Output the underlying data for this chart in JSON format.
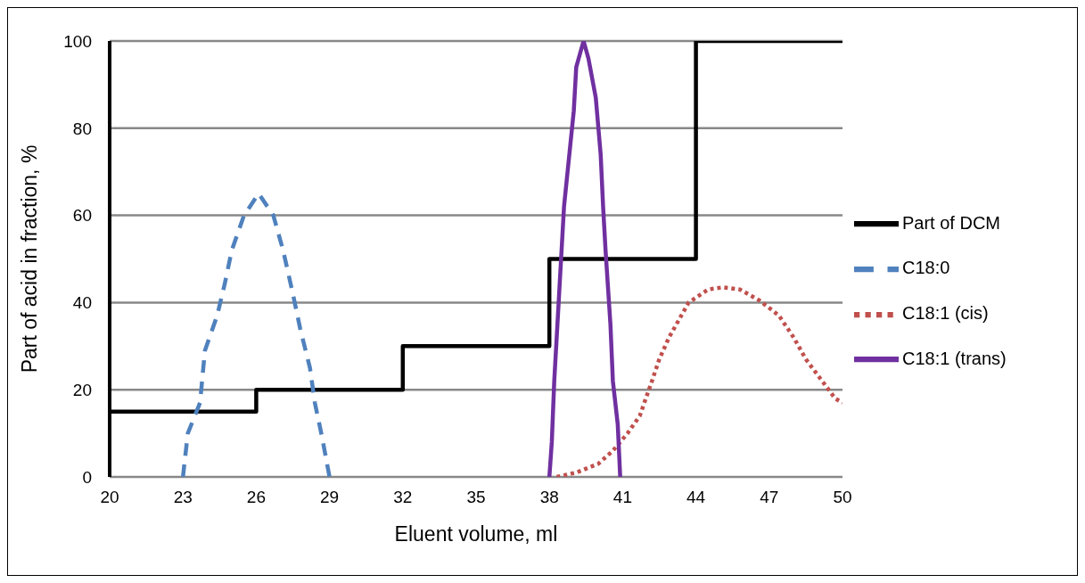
{
  "chart_data": {
    "type": "line",
    "xlabel": "Eluent volume, ml",
    "ylabel": "Part of acid in fraction, %",
    "xlim": [
      20,
      50
    ],
    "xticks": [
      20,
      23,
      26,
      29,
      32,
      35,
      38,
      41,
      44,
      47,
      50
    ],
    "ylim": [
      0,
      100
    ],
    "yticks": [
      0,
      20,
      40,
      60,
      80,
      100
    ],
    "grid": "y",
    "legend": "right",
    "marker": "none",
    "series": [
      {
        "name": "Part of DCM",
        "type": "step",
        "color": "#000000",
        "line_style": "solid",
        "x": [
          20,
          26,
          32,
          38,
          44,
          50
        ],
        "values": [
          15,
          20,
          30,
          50,
          100,
          100
        ]
      },
      {
        "name": "C18:0",
        "color": "#4f81bd",
        "line_style": "dashed",
        "x": [
          23.0,
          23.2,
          23.7,
          23.9,
          24.4,
          24.7,
          25.0,
          25.5,
          26.1,
          26.7,
          27.1,
          27.5,
          27.8,
          28.2,
          28.4,
          28.7,
          29.0
        ],
        "values": [
          0,
          10,
          17,
          29,
          37,
          44,
          52,
          60,
          65,
          60,
          52,
          42,
          34,
          25,
          17,
          9,
          0
        ]
      },
      {
        "name": "C18:1 (cis)",
        "color": "#c0504d",
        "line_style": "dotted",
        "x": [
          38.3,
          39.1,
          40.0,
          40.6,
          41.2,
          41.7,
          42.2,
          42.5,
          42.9,
          43.3,
          43.7,
          44.5,
          45.1,
          45.8,
          46.6,
          47.4,
          48.0,
          48.5,
          49.1,
          49.7,
          50.0
        ],
        "values": [
          0,
          1,
          3,
          6,
          10,
          14,
          22,
          27,
          32,
          36,
          40,
          43,
          43.5,
          43,
          40.5,
          37,
          32,
          27,
          22.5,
          18,
          17
        ]
      },
      {
        "name": "C18:1 (trans)",
        "color": "#7030a0",
        "line_style": "solid",
        "x": [
          38.0,
          38.1,
          38.2,
          38.4,
          38.6,
          38.8,
          39.0,
          39.1,
          39.4,
          39.6,
          39.9,
          40.1,
          40.2,
          40.3,
          40.5,
          40.6,
          40.8,
          40.9
        ],
        "values": [
          0,
          8,
          22,
          42,
          62,
          73,
          84,
          94,
          100,
          96,
          87,
          74,
          62,
          52,
          35,
          22,
          12,
          0
        ]
      }
    ]
  }
}
